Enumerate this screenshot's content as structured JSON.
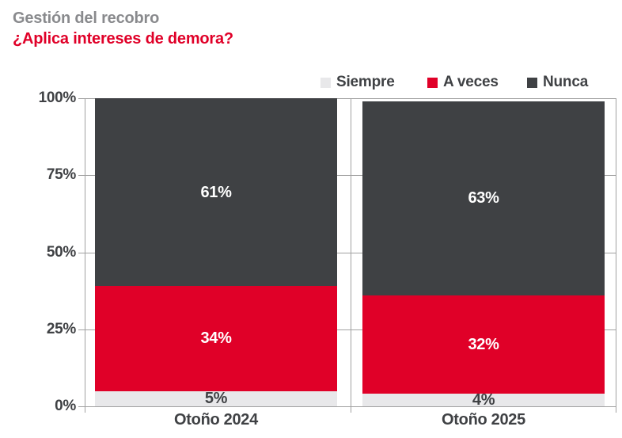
{
  "header": {
    "title": "Gestión del recobro",
    "subtitle": "¿Aplica intereses de demora?"
  },
  "colors": {
    "accent_red": "#e00028",
    "dark_gray": "#3f4144",
    "light_gray": "#e8e8ea",
    "title_gray": "#898a8d",
    "text_dark": "#3f4144",
    "label_on_dark": "#ffffff",
    "grid": "#a1a1a1"
  },
  "chart_data": {
    "type": "bar",
    "stacked": true,
    "title": "Gestión del recobro",
    "subtitle": "¿Aplica intereses de demora?",
    "categories": [
      "Otoño 2024",
      "Otoño 2025"
    ],
    "series": [
      {
        "name": "Siempre",
        "color_key": "light_gray",
        "label_color_key": "text_dark",
        "values": [
          5,
          4
        ]
      },
      {
        "name": "A veces",
        "color_key": "accent_red",
        "label_color_key": "label_on_dark",
        "values": [
          34,
          32
        ]
      },
      {
        "name": "Nunca",
        "color_key": "dark_gray",
        "label_color_key": "label_on_dark",
        "values": [
          61,
          63
        ]
      }
    ],
    "value_suffix": "%",
    "y_ticks": [
      "0%",
      "25%",
      "50%",
      "75%",
      "100%"
    ],
    "ylim": [
      0,
      100
    ],
    "grid": true,
    "legend_position": "top-right",
    "xlabel": "",
    "ylabel": ""
  }
}
